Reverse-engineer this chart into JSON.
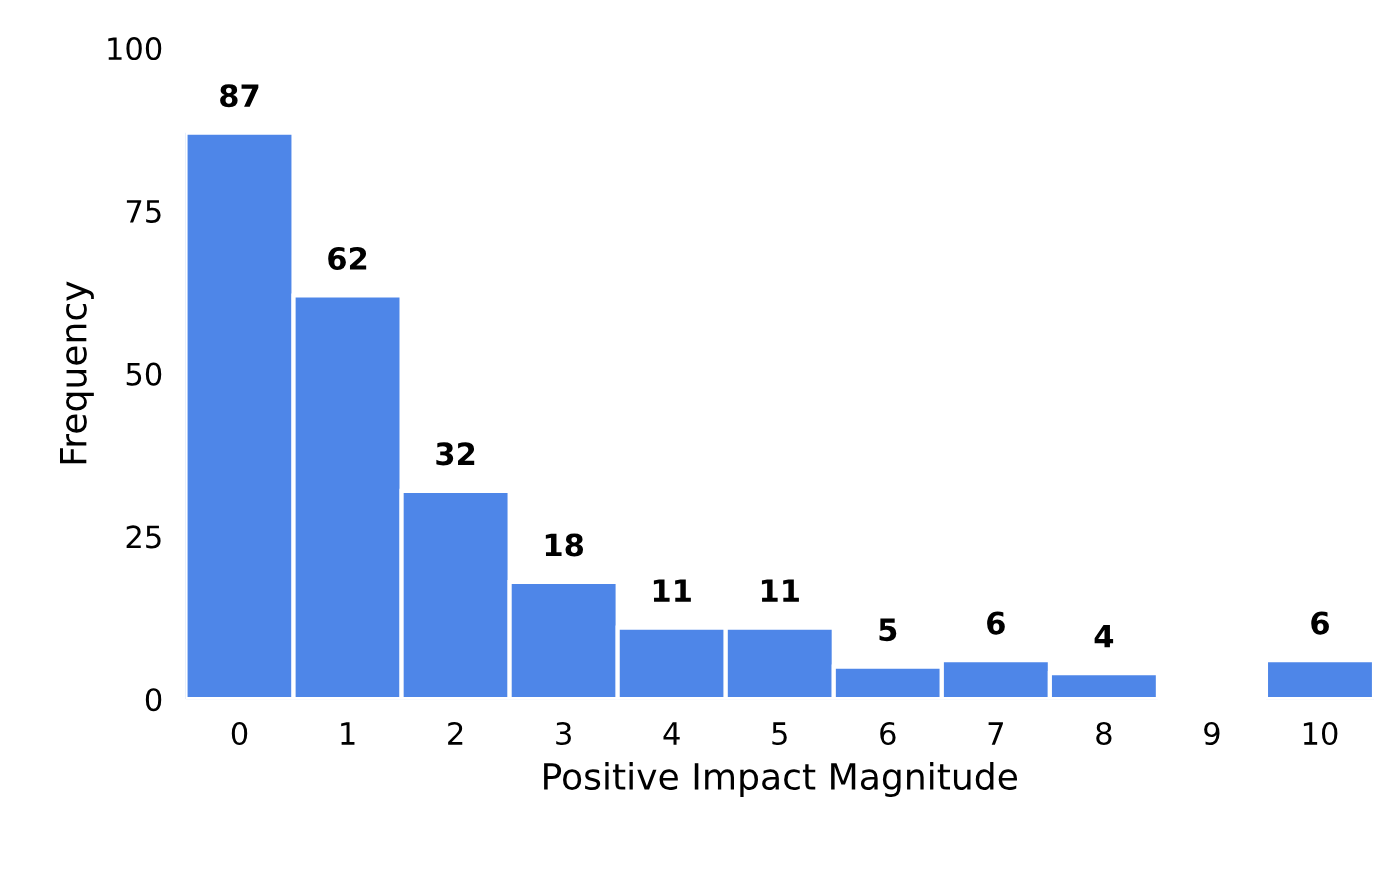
{
  "chart_data": {
    "type": "bar",
    "xlabel": "Positive Impact Magnitude",
    "ylabel": "Frequency",
    "categories": [
      "0",
      "1",
      "2",
      "3",
      "4",
      "5",
      "6",
      "7",
      "8",
      "9",
      "10"
    ],
    "values": [
      87,
      62,
      32,
      18,
      11,
      11,
      5,
      6,
      4,
      null,
      6
    ],
    "color": "#4e86e8",
    "ylim": [
      0,
      100
    ],
    "yticks": [
      0,
      25,
      50,
      75,
      100
    ],
    "grid": false,
    "data_labels": true
  }
}
